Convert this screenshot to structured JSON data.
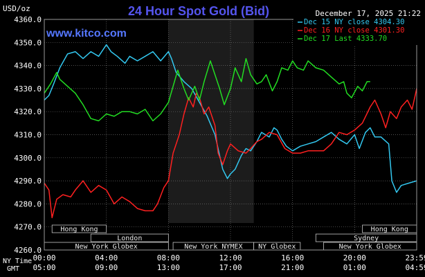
{
  "chart_data": {
    "type": "line",
    "title": "24 Hour Spot Gold (Bid)",
    "ylabel": "USD/oz",
    "watermark": "www.kitco.com",
    "timestamp": "December 17, 2025 21:22",
    "ylim": [
      4260,
      4360
    ],
    "yticks": [
      "4360.0",
      "4350.0",
      "4340.0",
      "4330.0",
      "4320.0",
      "4310.0",
      "4300.0",
      "4290.0",
      "4280.0",
      "4270.0",
      "4260.0"
    ],
    "xlim": [
      0,
      24
    ],
    "xticks": [
      {
        "x": 0,
        "ny": "00:00",
        "gmt": "05:00"
      },
      {
        "x": 4,
        "ny": "04:00",
        "gmt": "09:00"
      },
      {
        "x": 8,
        "ny": "08:00",
        "gmt": "13:00"
      },
      {
        "x": 12,
        "ny": "12:00",
        "gmt": "17:00"
      },
      {
        "x": 16,
        "ny": "16:00",
        "gmt": "21:00"
      },
      {
        "x": 20,
        "ny": "20:00",
        "gmt": "01:00"
      },
      {
        "x": 24,
        "ny": "23:59",
        "gmt": "04:59"
      }
    ],
    "tz_labels": {
      "ny": "NY Time",
      "gmt": "GMT"
    },
    "highlight": {
      "from": 8,
      "to": 13.5,
      "color": "#1c1c1c"
    },
    "grid": true,
    "legend_position": "top-right",
    "series": [
      {
        "name": "Dec 15 NY close 4304.30",
        "color": "#33c8f0",
        "points": [
          [
            0,
            4325
          ],
          [
            0.3,
            4327
          ],
          [
            0.6,
            4332
          ],
          [
            1,
            4339
          ],
          [
            1.5,
            4345
          ],
          [
            2,
            4346
          ],
          [
            2.5,
            4343
          ],
          [
            3,
            4346
          ],
          [
            3.5,
            4344
          ],
          [
            4,
            4349
          ],
          [
            4.3,
            4346
          ],
          [
            4.7,
            4344
          ],
          [
            5.2,
            4341
          ],
          [
            5.5,
            4344
          ],
          [
            6,
            4342
          ],
          [
            6.5,
            4344
          ],
          [
            7,
            4346
          ],
          [
            7.5,
            4342
          ],
          [
            8,
            4346
          ],
          [
            8.2,
            4343
          ],
          [
            8.5,
            4337
          ],
          [
            9,
            4333
          ],
          [
            9.5,
            4330
          ],
          [
            10,
            4324
          ],
          [
            10.5,
            4318
          ],
          [
            11,
            4310
          ],
          [
            11.3,
            4301
          ],
          [
            11.5,
            4295
          ],
          [
            11.8,
            4291
          ],
          [
            12,
            4293
          ],
          [
            12.3,
            4295
          ],
          [
            12.7,
            4301
          ],
          [
            13,
            4304
          ],
          [
            13.3,
            4303
          ],
          [
            13.7,
            4307
          ],
          [
            14,
            4311
          ],
          [
            14.5,
            4309
          ],
          [
            14.8,
            4313
          ],
          [
            15,
            4312
          ],
          [
            15.3,
            4308
          ],
          [
            15.6,
            4305
          ],
          [
            16,
            4303
          ],
          [
            16.5,
            4305
          ],
          [
            17,
            4306
          ],
          [
            17.5,
            4307
          ],
          [
            18,
            4309
          ],
          [
            18.5,
            4311
          ],
          [
            19,
            4308
          ],
          [
            19.5,
            4306
          ],
          [
            20,
            4310
          ],
          [
            20.3,
            4304
          ],
          [
            20.7,
            4311
          ],
          [
            21,
            4313
          ],
          [
            21.3,
            4309
          ],
          [
            21.7,
            4309
          ],
          [
            22.2,
            4306
          ],
          [
            22.4,
            4290
          ],
          [
            22.7,
            4285
          ],
          [
            23,
            4288
          ],
          [
            23.5,
            4289
          ],
          [
            24,
            4290
          ]
        ]
      },
      {
        "name": "Dec 16 NY close 4301.30",
        "color": "#ff2020",
        "points": [
          [
            0,
            4289
          ],
          [
            0.3,
            4286
          ],
          [
            0.5,
            4274
          ],
          [
            0.8,
            4282
          ],
          [
            1.2,
            4284
          ],
          [
            1.7,
            4283
          ],
          [
            2,
            4286
          ],
          [
            2.5,
            4290
          ],
          [
            3,
            4285
          ],
          [
            3.5,
            4288
          ],
          [
            4,
            4286
          ],
          [
            4.5,
            4280
          ],
          [
            5,
            4283
          ],
          [
            5.5,
            4281
          ],
          [
            6,
            4278
          ],
          [
            6.5,
            4277
          ],
          [
            7,
            4277
          ],
          [
            7.3,
            4280
          ],
          [
            7.7,
            4287
          ],
          [
            8,
            4290
          ],
          [
            8.3,
            4302
          ],
          [
            8.7,
            4310
          ],
          [
            9,
            4319
          ],
          [
            9.3,
            4326
          ],
          [
            9.6,
            4322
          ],
          [
            9.8,
            4328
          ],
          [
            10,
            4326
          ],
          [
            10.3,
            4319
          ],
          [
            10.6,
            4322
          ],
          [
            11,
            4314
          ],
          [
            11.2,
            4302
          ],
          [
            11.5,
            4297
          ],
          [
            11.8,
            4303
          ],
          [
            12,
            4306
          ],
          [
            12.5,
            4303
          ],
          [
            13,
            4302
          ],
          [
            13.3,
            4304
          ],
          [
            13.7,
            4307
          ],
          [
            14,
            4308
          ],
          [
            14.5,
            4311
          ],
          [
            15,
            4310
          ],
          [
            15.5,
            4304
          ],
          [
            16,
            4302
          ],
          [
            16.5,
            4302
          ],
          [
            17,
            4303
          ],
          [
            17.5,
            4303
          ],
          [
            18,
            4303
          ],
          [
            18.5,
            4306
          ],
          [
            19,
            4311
          ],
          [
            19.5,
            4310
          ],
          [
            20,
            4312
          ],
          [
            20.5,
            4315
          ],
          [
            21,
            4322
          ],
          [
            21.3,
            4325
          ],
          [
            21.7,
            4319
          ],
          [
            22,
            4313
          ],
          [
            22.3,
            4320
          ],
          [
            22.7,
            4317
          ],
          [
            23,
            4322
          ],
          [
            23.4,
            4325
          ],
          [
            23.7,
            4321
          ],
          [
            24,
            4330
          ]
        ]
      },
      {
        "name": "Dec 17 Last 4333.70",
        "color": "#22dd22",
        "points": [
          [
            0,
            4328
          ],
          [
            0.4,
            4332
          ],
          [
            0.8,
            4337
          ],
          [
            1,
            4334
          ],
          [
            1.5,
            4331
          ],
          [
            2,
            4328
          ],
          [
            2.5,
            4323
          ],
          [
            3,
            4317
          ],
          [
            3.5,
            4316
          ],
          [
            4,
            4319
          ],
          [
            4.5,
            4318
          ],
          [
            5,
            4320
          ],
          [
            5.5,
            4320
          ],
          [
            6,
            4319
          ],
          [
            6.5,
            4321
          ],
          [
            7,
            4316
          ],
          [
            7.5,
            4319
          ],
          [
            8,
            4324
          ],
          [
            8.3,
            4331
          ],
          [
            8.6,
            4338
          ],
          [
            9,
            4330
          ],
          [
            9.3,
            4325
          ],
          [
            9.7,
            4331
          ],
          [
            10,
            4325
          ],
          [
            10.3,
            4333
          ],
          [
            10.7,
            4342
          ],
          [
            11,
            4336
          ],
          [
            11.3,
            4330
          ],
          [
            11.6,
            4323
          ],
          [
            12,
            4330
          ],
          [
            12.3,
            4339
          ],
          [
            12.7,
            4333
          ],
          [
            13,
            4343
          ],
          [
            13.3,
            4336
          ],
          [
            13.7,
            4332
          ],
          [
            14,
            4333
          ],
          [
            14.3,
            4336
          ],
          [
            14.7,
            4329
          ],
          [
            15,
            4333
          ],
          [
            15.3,
            4339
          ],
          [
            15.7,
            4338
          ],
          [
            16,
            4342
          ],
          [
            16.3,
            4339
          ],
          [
            16.7,
            4338
          ],
          [
            17,
            4342
          ],
          [
            17.5,
            4339
          ],
          [
            18,
            4338
          ],
          [
            18.5,
            4335
          ],
          [
            19,
            4332
          ],
          [
            19.3,
            4333
          ],
          [
            19.5,
            4328
          ],
          [
            19.8,
            4326
          ],
          [
            20.2,
            4331
          ],
          [
            20.5,
            4329
          ],
          [
            20.8,
            4333
          ],
          [
            21,
            4333
          ]
        ]
      }
    ],
    "sessions": [
      {
        "label": "Hong Kong",
        "start": 0.5,
        "end": 4,
        "row": 0
      },
      {
        "label": "London",
        "start": 3,
        "end": 8,
        "row": 1
      },
      {
        "label": "New York Globex",
        "start": 0,
        "end": 8,
        "row": 2
      },
      {
        "label": "New York NYMEX",
        "start": 8.3,
        "end": 13.5,
        "row": 2
      },
      {
        "label": "NY Globex",
        "start": 13.5,
        "end": 16.5,
        "row": 2
      },
      {
        "label": "Hong Kong",
        "start": 20.5,
        "end": 24,
        "row": 0
      },
      {
        "label": "Sydney",
        "start": 17.5,
        "end": 24,
        "row": 1
      },
      {
        "label": "New York Globex",
        "start": 18,
        "end": 24,
        "row": 2
      }
    ]
  }
}
